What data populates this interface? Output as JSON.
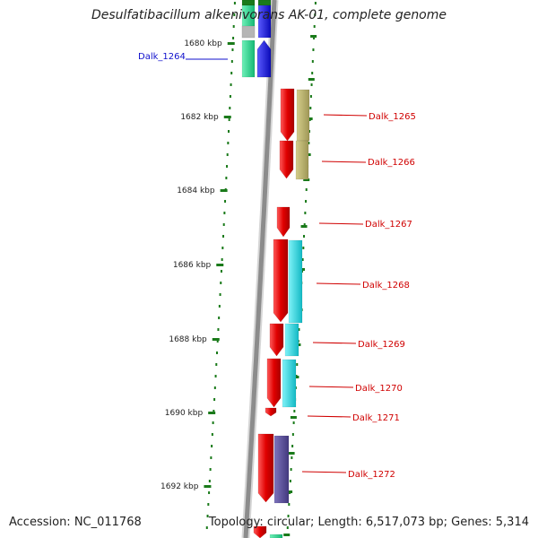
{
  "title": "Desulfatibacillum alkenivorans AK-01, complete genome",
  "footer": {
    "accession": "Accession: NC_011768",
    "summary": "Topology: circular; Length: 6,517,073 bp; Genes: 5,314"
  },
  "ruler": {
    "ticks": [
      "1680 kbp",
      "1682 kbp",
      "1684 kbp",
      "1686 kbp",
      "1688 kbp",
      "1690 kbp",
      "1692 kbp"
    ],
    "color": "#1a7a1a"
  },
  "colors": {
    "backbone": "#8c8c8c",
    "forward_label": "#1010cc",
    "reverse_label": "#d00000",
    "reverse_gene": "#e00000",
    "olive_feature": "#b4ad6a",
    "cyan_feature": "#1fd6e0",
    "purple_feature": "#5a4f9c",
    "green_feature": "#1ed98c",
    "blue_feature": "#1515e8",
    "grey_feature": "#b5b5b5"
  },
  "genes": [
    {
      "label": "Dalk_1264",
      "strand": "forward"
    },
    {
      "label": "Dalk_1265",
      "strand": "reverse"
    },
    {
      "label": "Dalk_1266",
      "strand": "reverse"
    },
    {
      "label": "Dalk_1267",
      "strand": "reverse"
    },
    {
      "label": "Dalk_1268",
      "strand": "reverse"
    },
    {
      "label": "Dalk_1269",
      "strand": "reverse"
    },
    {
      "label": "Dalk_1270",
      "strand": "reverse"
    },
    {
      "label": "Dalk_1271",
      "strand": "reverse"
    },
    {
      "label": "Dalk_1272",
      "strand": "reverse"
    }
  ]
}
